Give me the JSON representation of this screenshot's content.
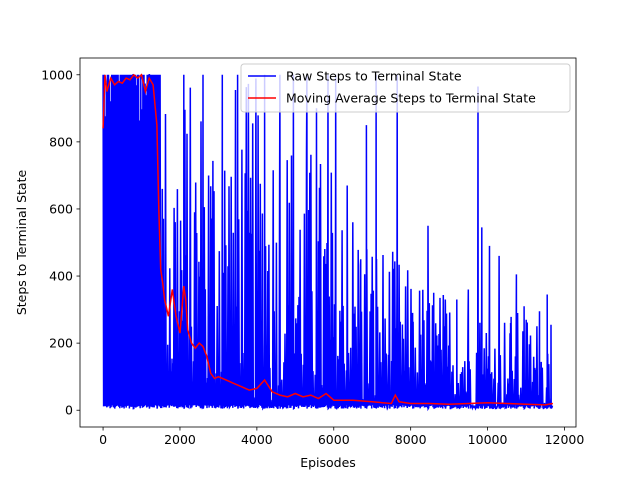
{
  "chart_data": {
    "type": "line",
    "title": "",
    "xlabel": "Episodes",
    "ylabel": "Steps to Terminal State",
    "xlim": [
      -600,
      12300
    ],
    "ylim": [
      -50,
      1050
    ],
    "xticks": [
      0,
      2000,
      4000,
      6000,
      8000,
      10000,
      12000
    ],
    "xtick_labels": [
      "0",
      "2000",
      "4000",
      "6000",
      "8000",
      "10000",
      "12000"
    ],
    "yticks": [
      0,
      200,
      400,
      600,
      800,
      1000
    ],
    "ytick_labels": [
      "0",
      "200",
      "400",
      "600",
      "800",
      "1000"
    ],
    "grid": false,
    "legend_position": "upper right",
    "legend": [
      "Raw Steps to Terminal State",
      "Moving Average Steps to Terminal State"
    ],
    "series": [
      {
        "name": "Raw Steps to Terminal State",
        "color": "#0000ff",
        "band": {
          "x": [
            0,
            1000,
            1500,
            2000,
            2500,
            3000,
            3500,
            4000,
            5000,
            6000,
            7000,
            8000,
            9000,
            10000,
            11000,
            11700
          ],
          "low": [
            5,
            5,
            5,
            5,
            5,
            5,
            5,
            5,
            5,
            5,
            5,
            5,
            5,
            5,
            5,
            5
          ],
          "high": [
            1000,
            1000,
            1000,
            1000,
            1000,
            1000,
            1000,
            1000,
            850,
            750,
            550,
            420,
            350,
            300,
            300,
            255
          ]
        },
        "spikes": {
          "x": [
            300,
            780,
            1200,
            1400,
            2100,
            2600,
            3100,
            3500,
            4200,
            4600,
            4950,
            5300,
            5550,
            5850,
            6050,
            6350,
            6700,
            6850,
            7100,
            7450,
            7650,
            8050,
            8450,
            8600,
            8900,
            9200,
            9500,
            9750,
            9850,
            10050,
            10300,
            10600,
            10750,
            10950,
            11100,
            11350,
            11550,
            11650
          ],
          "y": [
            1000,
            1000,
            1000,
            600,
            1000,
            1000,
            1000,
            1000,
            1000,
            1000,
            1000,
            1000,
            900,
            1000,
            1000,
            670,
            450,
            850,
            1000,
            350,
            1000,
            290,
            550,
            350,
            330,
            330,
            360,
            965,
            545,
            490,
            460,
            260,
            405,
            310,
            190,
            295,
            345,
            255
          ]
        }
      },
      {
        "name": "Moving Average Steps to Terminal State",
        "color": "#ff0000",
        "x": [
          0,
          50,
          100,
          200,
          300,
          400,
          500,
          600,
          700,
          800,
          900,
          1000,
          1100,
          1200,
          1300,
          1400,
          1450,
          1500,
          1550,
          1600,
          1700,
          1800,
          1900,
          2000,
          2100,
          2150,
          2200,
          2300,
          2400,
          2500,
          2600,
          2700,
          2800,
          2900,
          3000,
          3200,
          3400,
          3600,
          3800,
          4000,
          4200,
          4400,
          4600,
          4800,
          5000,
          5200,
          5400,
          5600,
          5800,
          6000,
          6500,
          7000,
          7500,
          7600,
          7700,
          8000,
          8500,
          9000,
          9500,
          10000,
          10500,
          11000,
          11500,
          11700
        ],
        "y": [
          840,
          1000,
          950,
          990,
          970,
          980,
          975,
          990,
          985,
          1000,
          990,
          1000,
          950,
          990,
          970,
          850,
          600,
          420,
          380,
          330,
          280,
          360,
          280,
          230,
          370,
          330,
          240,
          200,
          185,
          200,
          190,
          160,
          110,
          95,
          100,
          90,
          80,
          70,
          60,
          65,
          90,
          55,
          45,
          40,
          50,
          40,
          45,
          35,
          50,
          30,
          30,
          25,
          20,
          45,
          25,
          20,
          20,
          18,
          20,
          22,
          20,
          18,
          16,
          20
        ]
      }
    ]
  }
}
